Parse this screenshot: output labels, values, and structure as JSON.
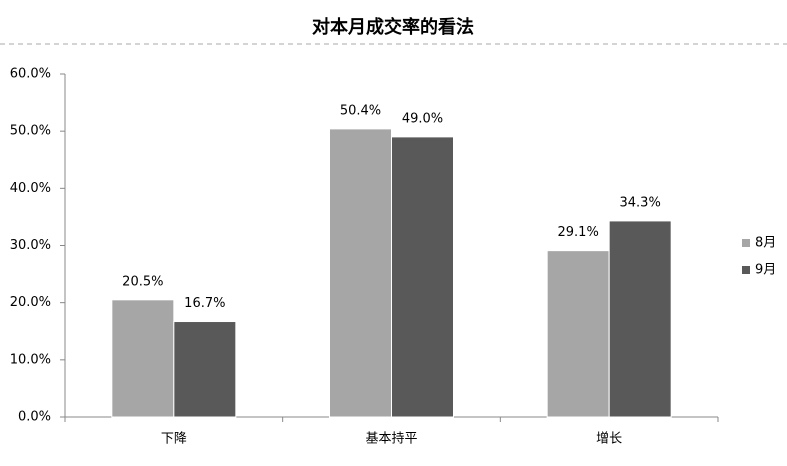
{
  "chart_data": {
    "type": "bar",
    "title": "对本月成交率的看法",
    "categories": [
      "下降",
      "基本持平",
      "增长"
    ],
    "series": [
      {
        "name": "8月",
        "color": "#a6a6a6",
        "values": [
          20.5,
          50.4,
          29.1
        ],
        "value_labels": [
          "20.5%",
          "50.4%",
          "29.1%"
        ]
      },
      {
        "name": "9月",
        "color": "#595959",
        "values": [
          16.7,
          49.0,
          34.3
        ],
        "value_labels": [
          "16.7%",
          "49.0%",
          "34.3%"
        ]
      }
    ],
    "ylim": [
      0,
      60
    ],
    "yticks": [
      {
        "value": 0,
        "label": "0.0%"
      },
      {
        "value": 10,
        "label": "10.0%"
      },
      {
        "value": 20,
        "label": "20.0%"
      },
      {
        "value": 30,
        "label": "30.0%"
      },
      {
        "value": 40,
        "label": "40.0%"
      },
      {
        "value": 50,
        "label": "50.0%"
      },
      {
        "value": 60,
        "label": "60.0%"
      }
    ],
    "grid": false,
    "legend": "right"
  }
}
